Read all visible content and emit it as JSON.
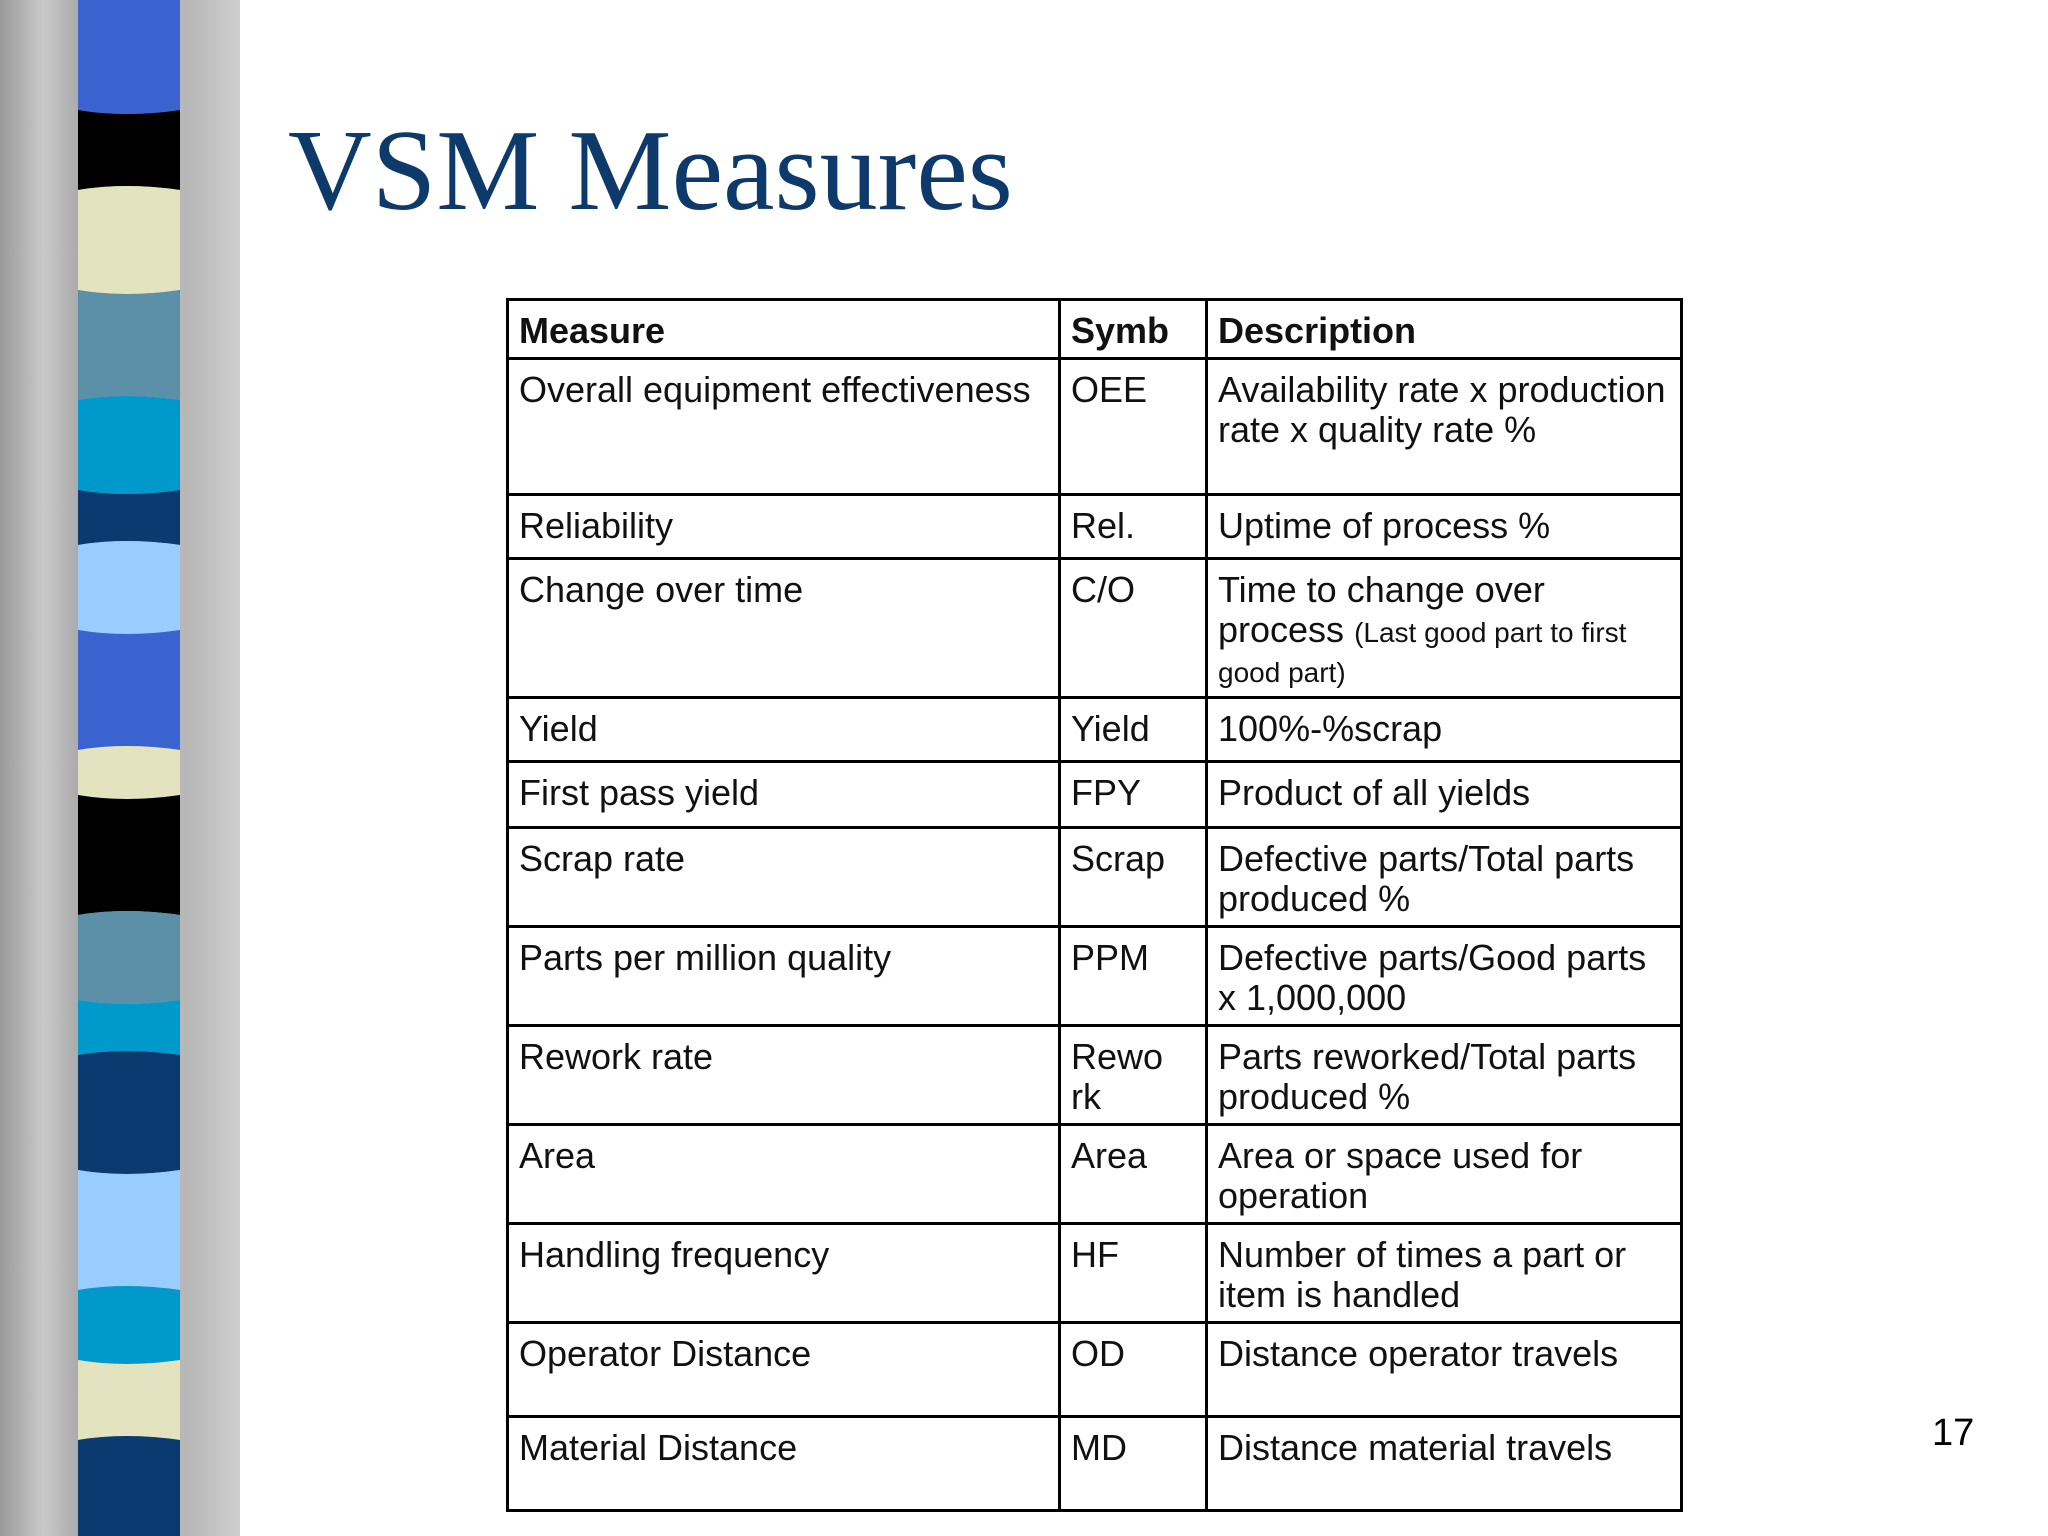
{
  "slide": {
    "title": "VSM Measures",
    "number": "17"
  },
  "table": {
    "headers": [
      "Measure",
      "Symb",
      "Description"
    ],
    "rows": [
      {
        "measure": "Overall equipment effectiveness",
        "symbol": "OEE",
        "description": "Availability rate x production rate x quality rate %"
      },
      {
        "measure": "Reliability",
        "symbol": "Rel.",
        "description": "Uptime of process %"
      },
      {
        "measure": "Change over time",
        "symbol": "C/O",
        "description": "Time to change over process",
        "description_note": "(Last good part to first good part)"
      },
      {
        "measure": "Yield",
        "symbol": "Yield",
        "description": "100%-%scrap"
      },
      {
        "measure": "First pass yield",
        "symbol": "FPY",
        "description": "Product of all yields"
      },
      {
        "measure": "Scrap rate",
        "symbol": "Scrap",
        "description": "Defective parts/Total parts produced %"
      },
      {
        "measure": "Parts per million quality",
        "symbol": "PPM",
        "description": "Defective parts/Good parts x 1,000,000"
      },
      {
        "measure": "Rework rate",
        "symbol": "Rewo rk",
        "description": "Parts reworked/Total parts produced %"
      },
      {
        "measure": "Area",
        "symbol": "Area",
        "description": "Area or space used for operation"
      },
      {
        "measure": "Handling frequency",
        "symbol": "HF",
        "description": "Number of times a part or item is handled"
      },
      {
        "measure": "Operator Distance",
        "symbol": "OD",
        "description": "Distance operator travels"
      },
      {
        "measure": "Material Distance",
        "symbol": "MD",
        "description": "Distance material travels"
      }
    ]
  },
  "theme": {
    "title_color": "#0d3a6b",
    "band_colors": [
      "#3b63cf",
      "#000000",
      "#e3e3bf",
      "#5b90a8",
      "#0099cc",
      "#0a3a70",
      "#99ccff"
    ]
  }
}
